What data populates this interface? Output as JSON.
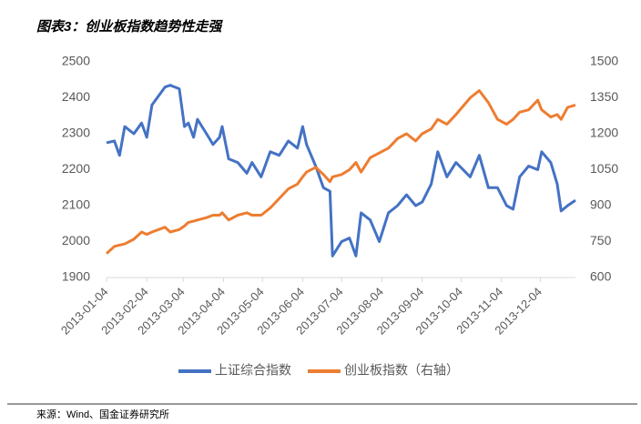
{
  "title": "图表3：创业板指数趋势性走强",
  "source": "来源：Wind、国金证券研究所",
  "chart_data": {
    "type": "line",
    "x": [
      "2013-01-04",
      "2013-01-10",
      "2013-01-14",
      "2013-01-18",
      "2013-01-25",
      "2013-01-31",
      "2013-02-04",
      "2013-02-08",
      "2013-02-18",
      "2013-02-22",
      "2013-03-01",
      "2013-03-05",
      "2013-03-08",
      "2013-03-12",
      "2013-03-15",
      "2013-03-22",
      "2013-03-27",
      "2013-04-01",
      "2013-04-03",
      "2013-04-08",
      "2013-04-15",
      "2013-04-22",
      "2013-04-26",
      "2013-05-03",
      "2013-05-10",
      "2013-05-17",
      "2013-05-24",
      "2013-05-31",
      "2013-06-04",
      "2013-06-07",
      "2013-06-14",
      "2013-06-20",
      "2013-06-25",
      "2013-06-27",
      "2013-07-04",
      "2013-07-10",
      "2013-07-15",
      "2013-07-19",
      "2013-07-26",
      "2013-08-02",
      "2013-08-09",
      "2013-08-16",
      "2013-08-23",
      "2013-08-30",
      "2013-09-04",
      "2013-09-11",
      "2013-09-16",
      "2013-09-23",
      "2013-09-30",
      "2013-10-11",
      "2013-10-18",
      "2013-10-25",
      "2013-11-01",
      "2013-11-08",
      "2013-11-13",
      "2013-11-18",
      "2013-11-25",
      "2013-12-02",
      "2013-12-05",
      "2013-12-12",
      "2013-12-17",
      "2013-12-20",
      "2013-12-25",
      "2013-12-31"
    ],
    "series": [
      {
        "name": "上证综合指数",
        "color": "#4472c4",
        "axis": "y",
        "values": [
          2275,
          2280,
          2240,
          2320,
          2300,
          2330,
          2290,
          2380,
          2430,
          2435,
          2425,
          2320,
          2330,
          2290,
          2340,
          2300,
          2270,
          2290,
          2320,
          2230,
          2220,
          2190,
          2220,
          2180,
          2250,
          2240,
          2280,
          2260,
          2320,
          2270,
          2210,
          2150,
          2140,
          1960,
          2000,
          2010,
          1960,
          2080,
          2060,
          2000,
          2080,
          2100,
          2130,
          2100,
          2110,
          2160,
          2250,
          2180,
          2220,
          2180,
          2240,
          2150,
          2150,
          2100,
          2090,
          2180,
          2210,
          2200,
          2250,
          2220,
          2160,
          2085,
          2100,
          2115
        ]
      },
      {
        "name": "创业板指数（右轴）",
        "color": "#ed7d31",
        "axis": "y2",
        "values": [
          700,
          730,
          735,
          740,
          760,
          790,
          780,
          790,
          810,
          790,
          800,
          815,
          830,
          835,
          840,
          850,
          860,
          860,
          870,
          840,
          860,
          870,
          860,
          860,
          890,
          930,
          970,
          990,
          1020,
          1040,
          1060,
          1030,
          1000,
          1020,
          1030,
          1050,
          1080,
          1040,
          1100,
          1120,
          1140,
          1180,
          1200,
          1170,
          1200,
          1220,
          1260,
          1240,
          1280,
          1350,
          1380,
          1330,
          1260,
          1240,
          1260,
          1290,
          1300,
          1340,
          1300,
          1270,
          1280,
          1260,
          1310,
          1320
        ]
      }
    ],
    "xlim": [
      "2013-01-04",
      "2013-12-31"
    ],
    "xticks": [
      "2013-01-04",
      "2013-02-04",
      "2013-03-04",
      "2013-04-04",
      "2013-05-04",
      "2013-06-04",
      "2013-07-04",
      "2013-08-04",
      "2013-09-04",
      "2013-10-04",
      "2013-11-04",
      "2013-12-04"
    ],
    "ylim": [
      1900,
      2500
    ],
    "yticks": [
      1900,
      2000,
      2100,
      2200,
      2300,
      2400,
      2500
    ],
    "y2lim": [
      600,
      1500
    ],
    "y2ticks": [
      600,
      750,
      900,
      1050,
      1200,
      1350,
      1500
    ],
    "legend": "bottom"
  }
}
